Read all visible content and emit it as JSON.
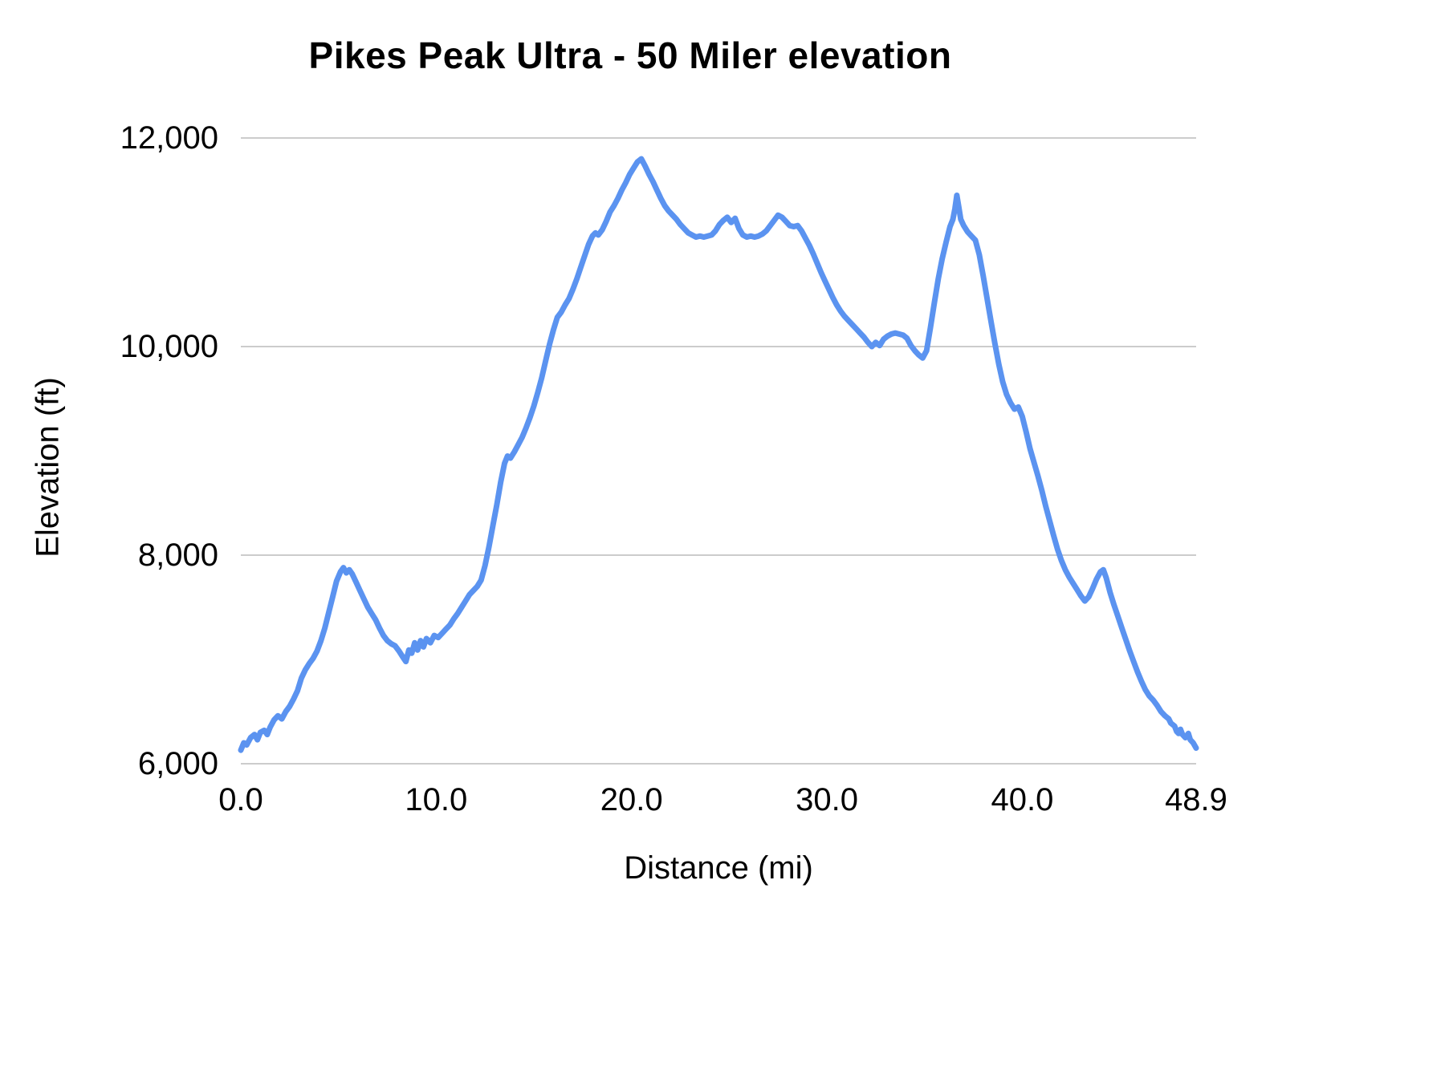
{
  "page": {
    "background": "#ffffff"
  },
  "chart_data": {
    "type": "line",
    "title": "Pikes Peak Ultra - 50 Miler elevation",
    "xlabel": "Distance (mi)",
    "ylabel": "Elevation (ft)",
    "xlim": [
      0,
      48.9
    ],
    "ylim": [
      6000,
      12000
    ],
    "x_tick_labels": [
      "0.0",
      "10.0",
      "20.0",
      "30.0",
      "40.0",
      "48.9"
    ],
    "x_tick_values": [
      0,
      10,
      20,
      30,
      40,
      48.9
    ],
    "y_tick_labels": [
      "6,000",
      "8,000",
      "10,000",
      "12,000"
    ],
    "y_tick_values": [
      6000,
      8000,
      10000,
      12000
    ],
    "grid": true,
    "legend": "none",
    "line_color": "#5b93f0",
    "grid_color": "#cccccc",
    "tick_label_color": "#000000",
    "series": [
      {
        "name": "Elevation",
        "points": [
          [
            0,
            6130
          ],
          [
            0.15,
            6200
          ],
          [
            0.3,
            6180
          ],
          [
            0.5,
            6250
          ],
          [
            0.7,
            6280
          ],
          [
            0.85,
            6230
          ],
          [
            1,
            6300
          ],
          [
            1.2,
            6320
          ],
          [
            1.35,
            6280
          ],
          [
            1.5,
            6350
          ],
          [
            1.7,
            6420
          ],
          [
            1.9,
            6460
          ],
          [
            2.1,
            6430
          ],
          [
            2.3,
            6500
          ],
          [
            2.5,
            6550
          ],
          [
            2.7,
            6620
          ],
          [
            2.9,
            6700
          ],
          [
            3.1,
            6820
          ],
          [
            3.3,
            6900
          ],
          [
            3.5,
            6960
          ],
          [
            3.7,
            7010
          ],
          [
            3.9,
            7080
          ],
          [
            4.1,
            7180
          ],
          [
            4.3,
            7300
          ],
          [
            4.5,
            7450
          ],
          [
            4.7,
            7600
          ],
          [
            4.9,
            7750
          ],
          [
            5.1,
            7840
          ],
          [
            5.25,
            7880
          ],
          [
            5.4,
            7830
          ],
          [
            5.55,
            7860
          ],
          [
            5.7,
            7820
          ],
          [
            5.9,
            7740
          ],
          [
            6.1,
            7660
          ],
          [
            6.3,
            7580
          ],
          [
            6.5,
            7500
          ],
          [
            6.7,
            7440
          ],
          [
            6.9,
            7380
          ],
          [
            7.1,
            7300
          ],
          [
            7.3,
            7230
          ],
          [
            7.5,
            7180
          ],
          [
            7.7,
            7150
          ],
          [
            7.9,
            7130
          ],
          [
            8.1,
            7080
          ],
          [
            8.3,
            7020
          ],
          [
            8.45,
            6980
          ],
          [
            8.6,
            7090
          ],
          [
            8.75,
            7060
          ],
          [
            8.9,
            7160
          ],
          [
            9.05,
            7090
          ],
          [
            9.2,
            7180
          ],
          [
            9.35,
            7120
          ],
          [
            9.5,
            7200
          ],
          [
            9.7,
            7160
          ],
          [
            9.9,
            7230
          ],
          [
            10.1,
            7210
          ],
          [
            10.3,
            7250
          ],
          [
            10.5,
            7290
          ],
          [
            10.7,
            7330
          ],
          [
            10.9,
            7390
          ],
          [
            11.1,
            7440
          ],
          [
            11.3,
            7500
          ],
          [
            11.5,
            7560
          ],
          [
            11.7,
            7620
          ],
          [
            11.9,
            7660
          ],
          [
            12.1,
            7700
          ],
          [
            12.3,
            7760
          ],
          [
            12.5,
            7900
          ],
          [
            12.7,
            8080
          ],
          [
            12.9,
            8280
          ],
          [
            13.1,
            8480
          ],
          [
            13.3,
            8700
          ],
          [
            13.5,
            8880
          ],
          [
            13.65,
            8950
          ],
          [
            13.8,
            8930
          ],
          [
            14,
            8990
          ],
          [
            14.2,
            9060
          ],
          [
            14.4,
            9130
          ],
          [
            14.6,
            9220
          ],
          [
            14.8,
            9320
          ],
          [
            15,
            9430
          ],
          [
            15.2,
            9560
          ],
          [
            15.4,
            9700
          ],
          [
            15.6,
            9860
          ],
          [
            15.8,
            10020
          ],
          [
            16,
            10160
          ],
          [
            16.2,
            10280
          ],
          [
            16.4,
            10330
          ],
          [
            16.6,
            10400
          ],
          [
            16.8,
            10460
          ],
          [
            17,
            10550
          ],
          [
            17.2,
            10650
          ],
          [
            17.4,
            10760
          ],
          [
            17.6,
            10870
          ],
          [
            17.8,
            10980
          ],
          [
            18,
            11060
          ],
          [
            18.15,
            11090
          ],
          [
            18.3,
            11070
          ],
          [
            18.5,
            11120
          ],
          [
            18.7,
            11200
          ],
          [
            18.9,
            11290
          ],
          [
            19.1,
            11350
          ],
          [
            19.3,
            11420
          ],
          [
            19.5,
            11500
          ],
          [
            19.7,
            11570
          ],
          [
            19.9,
            11650
          ],
          [
            20.1,
            11710
          ],
          [
            20.3,
            11770
          ],
          [
            20.5,
            11800
          ],
          [
            20.7,
            11730
          ],
          [
            20.9,
            11650
          ],
          [
            21.1,
            11580
          ],
          [
            21.3,
            11500
          ],
          [
            21.5,
            11420
          ],
          [
            21.7,
            11350
          ],
          [
            21.9,
            11300
          ],
          [
            22.1,
            11260
          ],
          [
            22.3,
            11220
          ],
          [
            22.5,
            11170
          ],
          [
            22.7,
            11130
          ],
          [
            22.9,
            11090
          ],
          [
            23.1,
            11070
          ],
          [
            23.3,
            11050
          ],
          [
            23.5,
            11060
          ],
          [
            23.7,
            11050
          ],
          [
            23.9,
            11060
          ],
          [
            24.1,
            11070
          ],
          [
            24.3,
            11110
          ],
          [
            24.5,
            11170
          ],
          [
            24.7,
            11210
          ],
          [
            24.9,
            11240
          ],
          [
            25.1,
            11190
          ],
          [
            25.3,
            11230
          ],
          [
            25.5,
            11130
          ],
          [
            25.7,
            11070
          ],
          [
            25.9,
            11050
          ],
          [
            26.1,
            11060
          ],
          [
            26.3,
            11050
          ],
          [
            26.5,
            11060
          ],
          [
            26.7,
            11080
          ],
          [
            26.9,
            11110
          ],
          [
            27.1,
            11160
          ],
          [
            27.3,
            11210
          ],
          [
            27.5,
            11260
          ],
          [
            27.7,
            11240
          ],
          [
            27.9,
            11200
          ],
          [
            28.1,
            11160
          ],
          [
            28.3,
            11150
          ],
          [
            28.5,
            11160
          ],
          [
            28.7,
            11110
          ],
          [
            28.9,
            11040
          ],
          [
            29.1,
            10970
          ],
          [
            29.3,
            10890
          ],
          [
            29.5,
            10800
          ],
          [
            29.7,
            10710
          ],
          [
            29.9,
            10630
          ],
          [
            30.1,
            10550
          ],
          [
            30.3,
            10470
          ],
          [
            30.5,
            10400
          ],
          [
            30.7,
            10340
          ],
          [
            30.9,
            10290
          ],
          [
            31.1,
            10250
          ],
          [
            31.3,
            10210
          ],
          [
            31.5,
            10170
          ],
          [
            31.7,
            10130
          ],
          [
            31.9,
            10090
          ],
          [
            32.1,
            10040
          ],
          [
            32.3,
            10000
          ],
          [
            32.5,
            10040
          ],
          [
            32.7,
            10010
          ],
          [
            32.9,
            10070
          ],
          [
            33.1,
            10100
          ],
          [
            33.3,
            10120
          ],
          [
            33.5,
            10130
          ],
          [
            33.7,
            10120
          ],
          [
            33.9,
            10110
          ],
          [
            34.1,
            10080
          ],
          [
            34.3,
            10010
          ],
          [
            34.5,
            9960
          ],
          [
            34.7,
            9920
          ],
          [
            34.9,
            9890
          ],
          [
            35.1,
            9960
          ],
          [
            35.3,
            10180
          ],
          [
            35.5,
            10420
          ],
          [
            35.7,
            10650
          ],
          [
            35.9,
            10840
          ],
          [
            36.1,
            11000
          ],
          [
            36.3,
            11150
          ],
          [
            36.45,
            11220
          ],
          [
            36.55,
            11320
          ],
          [
            36.65,
            11450
          ],
          [
            36.75,
            11340
          ],
          [
            36.85,
            11220
          ],
          [
            37,
            11160
          ],
          [
            37.2,
            11100
          ],
          [
            37.4,
            11060
          ],
          [
            37.6,
            11020
          ],
          [
            37.8,
            10880
          ],
          [
            38,
            10680
          ],
          [
            38.2,
            10460
          ],
          [
            38.4,
            10240
          ],
          [
            38.6,
            10030
          ],
          [
            38.8,
            9830
          ],
          [
            39,
            9660
          ],
          [
            39.2,
            9540
          ],
          [
            39.4,
            9460
          ],
          [
            39.6,
            9400
          ],
          [
            39.8,
            9420
          ],
          [
            40,
            9330
          ],
          [
            40.2,
            9180
          ],
          [
            40.4,
            9020
          ],
          [
            40.6,
            8890
          ],
          [
            40.8,
            8760
          ],
          [
            41,
            8620
          ],
          [
            41.2,
            8470
          ],
          [
            41.4,
            8330
          ],
          [
            41.6,
            8190
          ],
          [
            41.8,
            8060
          ],
          [
            42,
            7950
          ],
          [
            42.2,
            7860
          ],
          [
            42.4,
            7790
          ],
          [
            42.6,
            7730
          ],
          [
            42.8,
            7670
          ],
          [
            43,
            7610
          ],
          [
            43.2,
            7560
          ],
          [
            43.4,
            7600
          ],
          [
            43.6,
            7680
          ],
          [
            43.8,
            7770
          ],
          [
            44,
            7840
          ],
          [
            44.15,
            7860
          ],
          [
            44.3,
            7780
          ],
          [
            44.5,
            7640
          ],
          [
            44.7,
            7520
          ],
          [
            44.9,
            7410
          ],
          [
            45.1,
            7300
          ],
          [
            45.3,
            7190
          ],
          [
            45.5,
            7080
          ],
          [
            45.7,
            6980
          ],
          [
            45.9,
            6880
          ],
          [
            46.1,
            6790
          ],
          [
            46.3,
            6710
          ],
          [
            46.5,
            6650
          ],
          [
            46.7,
            6610
          ],
          [
            46.9,
            6560
          ],
          [
            47.1,
            6500
          ],
          [
            47.3,
            6460
          ],
          [
            47.5,
            6430
          ],
          [
            47.6,
            6390
          ],
          [
            47.8,
            6360
          ],
          [
            47.9,
            6310
          ],
          [
            48,
            6290
          ],
          [
            48.1,
            6330
          ],
          [
            48.2,
            6280
          ],
          [
            48.35,
            6250
          ],
          [
            48.5,
            6290
          ],
          [
            48.6,
            6230
          ],
          [
            48.75,
            6200
          ],
          [
            48.9,
            6150
          ]
        ]
      }
    ]
  }
}
